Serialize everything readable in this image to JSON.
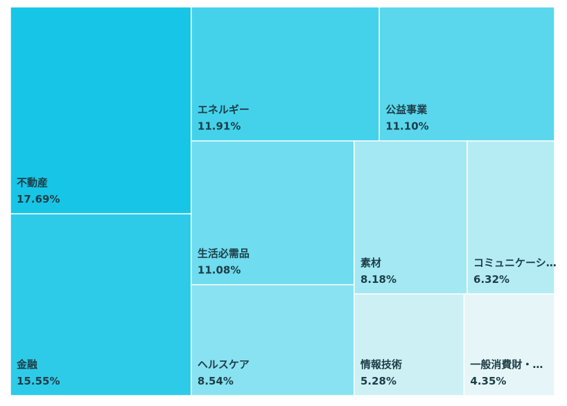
{
  "chart_data": {
    "type": "treemap",
    "categories": [
      "不動産",
      "金融",
      "エネルギー",
      "公益事業",
      "生活必需品",
      "ヘルスケア",
      "素材",
      "コミュニケーシ…",
      "情報技術",
      "一般消費財・…"
    ],
    "values": [
      17.69,
      15.55,
      11.91,
      11.1,
      11.08,
      8.54,
      8.18,
      6.32,
      5.28,
      4.35
    ],
    "value_labels": [
      "17.69%",
      "15.55%",
      "11.91%",
      "11.10%",
      "11.08%",
      "8.54%",
      "8.18%",
      "6.32%",
      "5.28%",
      "4.35%"
    ],
    "colors": [
      "#17c6e6",
      "#2ecbe9",
      "#44d2eb",
      "#5bd7ed",
      "#6fdcef",
      "#88e2f1",
      "#a3e8f2",
      "#b5ecf4",
      "#ccf0f4",
      "#e6f6f8"
    ]
  }
}
